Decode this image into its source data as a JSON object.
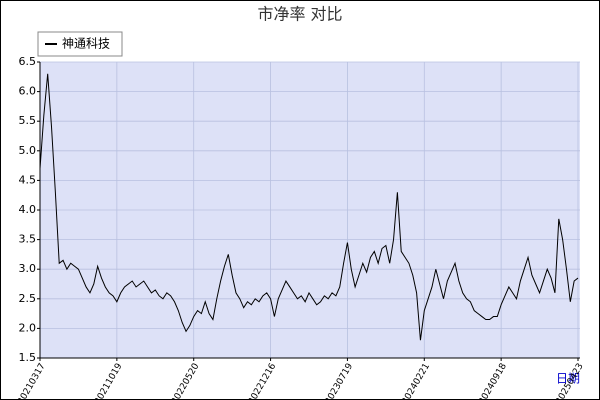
{
  "chart_data": {
    "type": "line",
    "title": "市净率  对比",
    "x_label": "日期",
    "categories": [
      "20210317",
      null,
      null,
      null,
      null,
      null,
      null,
      null,
      null,
      null,
      null,
      null,
      null,
      null,
      null,
      null,
      null,
      null,
      null,
      null,
      "20211019",
      null,
      null,
      null,
      null,
      null,
      null,
      null,
      null,
      null,
      null,
      null,
      null,
      null,
      null,
      null,
      null,
      null,
      null,
      null,
      "20220520",
      null,
      null,
      null,
      null,
      null,
      null,
      null,
      null,
      null,
      null,
      null,
      null,
      null,
      null,
      null,
      null,
      null,
      null,
      null,
      "20221216",
      null,
      null,
      null,
      null,
      null,
      null,
      null,
      null,
      null,
      null,
      null,
      null,
      null,
      null,
      null,
      null,
      null,
      null,
      null,
      "20230719",
      null,
      null,
      null,
      null,
      null,
      null,
      null,
      null,
      null,
      null,
      null,
      null,
      null,
      null,
      null,
      null,
      null,
      null,
      null,
      "20240221",
      null,
      null,
      null,
      null,
      null,
      null,
      null,
      null,
      null,
      null,
      null,
      null,
      null,
      null,
      null,
      null,
      null,
      null,
      null,
      "20240918",
      null,
      null,
      null,
      null,
      null,
      null,
      null,
      null,
      null,
      null,
      null,
      null,
      null,
      null,
      null,
      null,
      null,
      null,
      null,
      "20250423"
    ],
    "series": [
      {
        "name": "神通科技",
        "color": "#000000",
        "values": [
          4.7,
          5.6,
          6.3,
          5.4,
          4.3,
          3.1,
          3.15,
          3.0,
          3.1,
          3.05,
          3.0,
          2.85,
          2.7,
          2.6,
          2.75,
          3.05,
          2.85,
          2.7,
          2.6,
          2.55,
          2.45,
          2.6,
          2.7,
          2.75,
          2.8,
          2.7,
          2.75,
          2.8,
          2.7,
          2.6,
          2.65,
          2.55,
          2.5,
          2.6,
          2.55,
          2.45,
          2.3,
          2.1,
          1.95,
          2.05,
          2.2,
          2.3,
          2.25,
          2.45,
          2.25,
          2.15,
          2.5,
          2.8,
          3.05,
          3.25,
          2.9,
          2.6,
          2.5,
          2.35,
          2.45,
          2.4,
          2.5,
          2.45,
          2.55,
          2.6,
          2.5,
          2.2,
          2.5,
          2.65,
          2.8,
          2.7,
          2.6,
          2.5,
          2.55,
          2.45,
          2.6,
          2.5,
          2.4,
          2.45,
          2.55,
          2.5,
          2.6,
          2.55,
          2.7,
          3.1,
          3.45,
          3.0,
          2.7,
          2.9,
          3.1,
          2.95,
          3.2,
          3.3,
          3.1,
          3.35,
          3.4,
          3.1,
          3.5,
          4.3,
          3.3,
          3.2,
          3.1,
          2.9,
          2.6,
          1.8,
          2.3,
          2.5,
          2.7,
          3.0,
          2.75,
          2.5,
          2.8,
          2.95,
          3.1,
          2.8,
          2.6,
          2.5,
          2.45,
          2.3,
          2.25,
          2.2,
          2.15,
          2.15,
          2.2,
          2.2,
          2.4,
          2.55,
          2.7,
          2.6,
          2.5,
          2.8,
          3.0,
          3.2,
          2.9,
          2.75,
          2.6,
          2.8,
          3.0,
          2.85,
          2.6,
          3.85,
          3.5,
          3.0,
          2.45,
          2.8,
          2.85
        ]
      }
    ],
    "ylim": [
      1.5,
      6.5
    ],
    "yticks": [
      1.5,
      {
        "value": 2,
        "label": "2.0"
      },
      2.5,
      {
        "value": 3,
        "label": "3.0"
      },
      3.5,
      {
        "value": 4,
        "label": "4.0"
      },
      4.5,
      {
        "value": 5,
        "label": "5.0"
      },
      5.5,
      {
        "value": 6,
        "label": "6.0"
      },
      6.5
    ],
    "grid": true
  }
}
